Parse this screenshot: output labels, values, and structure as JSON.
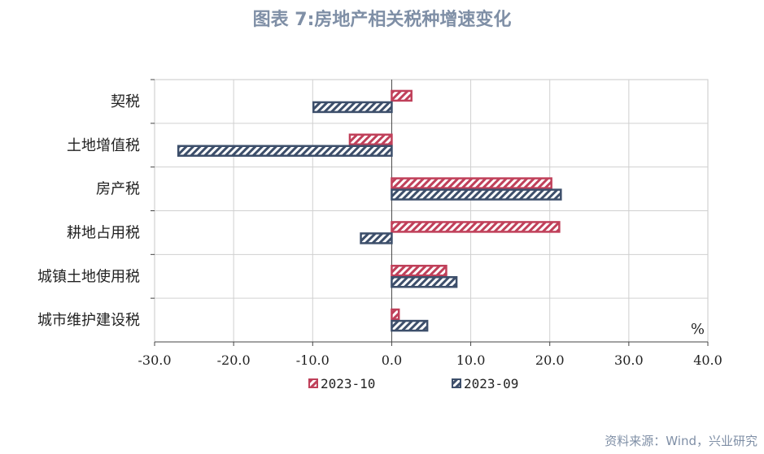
{
  "title": "图表 7:房地产相关税种增速变化",
  "source": "资料来源：Wind，兴业研究",
  "chart_data": {
    "type": "bar",
    "orientation": "horizontal",
    "categories": [
      "契税",
      "土地增值税",
      "房产税",
      "耕地占用税",
      "城镇土地使用税",
      "城市维护建设税"
    ],
    "series": [
      {
        "name": "2023-10",
        "values": [
          2.5,
          -5.3,
          20.2,
          21.2,
          6.9,
          0.9
        ],
        "color": "#c0405a"
      },
      {
        "name": "2023-09",
        "values": [
          -9.9,
          -27.0,
          21.4,
          -3.9,
          8.2,
          4.5
        ],
        "color": "#3d4f6b"
      }
    ],
    "xlim": [
      -30,
      40
    ],
    "xticks": [
      "-30.0",
      "-20.0",
      "-10.0",
      "0.0",
      "10.0",
      "20.0",
      "30.0",
      "40.0"
    ],
    "unit": "%",
    "grid": true,
    "legend_position": "bottom"
  }
}
